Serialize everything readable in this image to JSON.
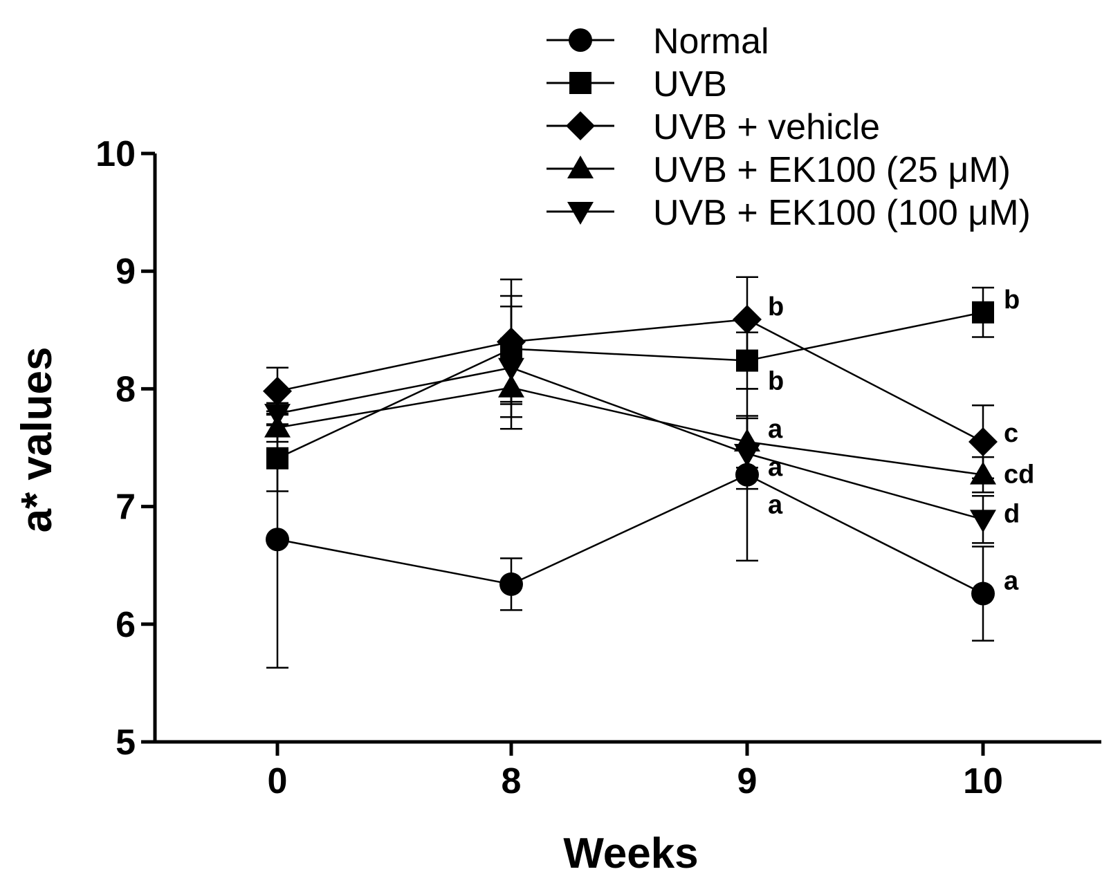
{
  "chart_data": {
    "type": "line",
    "title": "",
    "xlabel": "Weeks",
    "ylabel": "a* values",
    "categories": [
      "0",
      "8",
      "9",
      "10"
    ],
    "ylim": [
      5,
      10
    ],
    "yticks": [
      "5",
      "6",
      "7",
      "8",
      "9",
      "10"
    ],
    "legend_position": "top-right",
    "series": [
      {
        "name": "Normal",
        "marker": "circle",
        "values": [
          6.72,
          6.34,
          7.27,
          6.26
        ],
        "errors": [
          1.09,
          0.22,
          0.73,
          0.4
        ],
        "labels": [
          "",
          "",
          "a",
          "a"
        ]
      },
      {
        "name": "UVB",
        "marker": "square",
        "values": [
          7.41,
          8.34,
          8.24,
          8.65
        ],
        "errors": [
          0.28,
          0.45,
          0.24,
          0.21
        ],
        "labels": [
          "",
          "",
          "b",
          "b"
        ]
      },
      {
        "name": "UVB + vehicle",
        "marker": "diamond",
        "values": [
          7.98,
          8.4,
          8.59,
          7.55
        ],
        "errors": [
          0.2,
          0.53,
          0.36,
          0.31
        ],
        "labels": [
          "",
          "",
          "b",
          "c"
        ]
      },
      {
        "name": "UVB + EK100 (25 μM)",
        "marker": "triangle-up",
        "values": [
          7.67,
          8.01,
          7.55,
          7.27
        ],
        "errors": [
          0.12,
          0.25,
          0.22,
          0.15
        ],
        "labels": [
          "",
          "",
          "a",
          "cd"
        ]
      },
      {
        "name": "UVB + EK100 (100 μM)",
        "marker": "triangle-down",
        "values": [
          7.79,
          8.18,
          7.45,
          6.89
        ],
        "errors": [
          0.09,
          0.52,
          0.3,
          0.2
        ],
        "labels": [
          "",
          "",
          "a",
          "d"
        ]
      }
    ]
  }
}
